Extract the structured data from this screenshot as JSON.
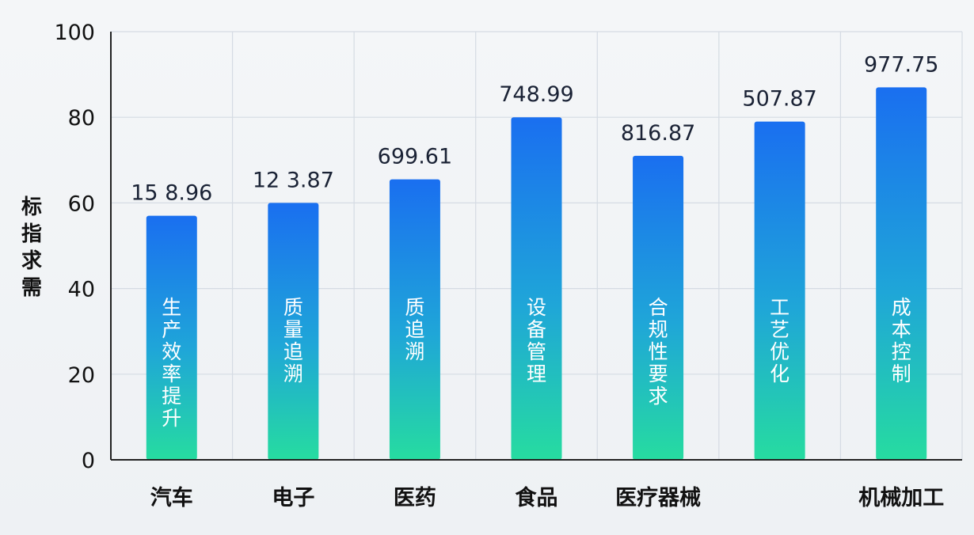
{
  "chart_data": {
    "type": "bar",
    "title": "",
    "xlabel": "",
    "ylabel": "标指求需",
    "ylim": [
      0,
      100
    ],
    "y_ticks": [
      0,
      20,
      40,
      60,
      80,
      100
    ],
    "grid": true,
    "categories": [
      "汽车",
      "电子",
      "医药",
      "食品",
      "医疗器械",
      "",
      "机械加工"
    ],
    "values": [
      57,
      60,
      65.5,
      80,
      71,
      79,
      87
    ],
    "value_labels": [
      "15 8.96",
      "12 3.87",
      "699.61",
      "748.99",
      "816.87",
      "507.87",
      "977.75"
    ],
    "bar_texts": [
      "生产效率提升",
      "质量追溯",
      "质追溯",
      "设备管理",
      "合规性要求",
      "工艺优化",
      "成本控制"
    ],
    "colors": {
      "bar_top": "#1a6ff0",
      "bar_bottom": "#26dca0",
      "axis": "#222222",
      "grid": "#d5dbe3"
    }
  }
}
